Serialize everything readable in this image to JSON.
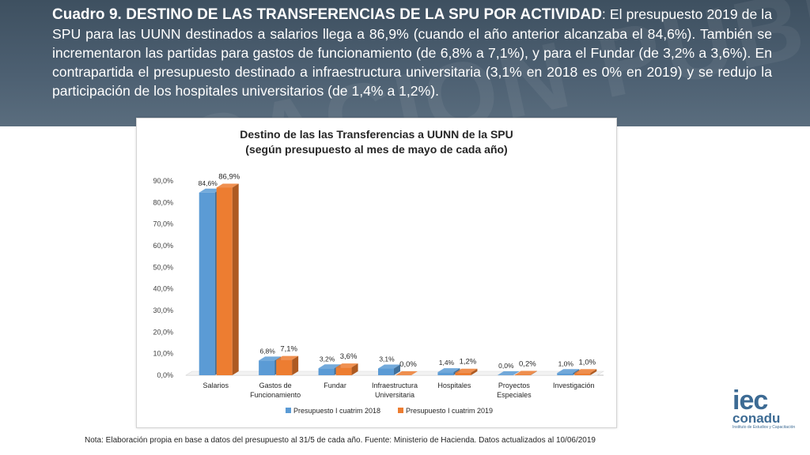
{
  "header": {
    "lead": "Cuadro 9.   DESTINO DE LAS TRANSFERENCIAS DE LA SPU POR ACTIVIDAD",
    "body": ": El presupuesto 2019 de la SPU para las UUNN destinados a salarios llega a 86,9% (cuando el año anterior alcanzaba el 84,6%). También se incrementaron las partidas para gastos de funcionamiento (de 6,8% a 7,1%), y para el Fundar (de 3,2% a 3,6%). En contrapartida el presupuesto destinado a infraestructura universitaria (3,1% en 2018 es 0% en 2019) y se redujo la participación de los hospitales universitarios (de 1,4% a 1,2%)."
  },
  "chart_data": {
    "type": "bar",
    "title": "Destino de las las Transferencias a UUNN de la SPU",
    "subtitle": "(según presupuesto al mes de mayo de cada año)",
    "categories": [
      [
        "Salarios"
      ],
      [
        "Gastos de",
        "Funcionamiento"
      ],
      [
        "Fundar"
      ],
      [
        "Infraestructura",
        "Universitaria"
      ],
      [
        "Hospitales"
      ],
      [
        "Proyectos",
        "Especiales"
      ],
      [
        "Investigación"
      ]
    ],
    "series": [
      {
        "name": "Presupuesto I cuatrim 2018",
        "values": [
          84.6,
          6.8,
          3.2,
          3.1,
          1.4,
          0.0,
          1.0
        ],
        "labels": [
          "84,6%",
          "6,8%",
          "3,2%",
          "3,1%",
          "1,4%",
          "0,0%",
          "1,0%"
        ],
        "color": "#5b9bd5",
        "side": "#41719c"
      },
      {
        "name": "Presupuesto I cuatrim 2019",
        "values": [
          86.9,
          7.1,
          3.6,
          0.0,
          1.2,
          0.2,
          1.0
        ],
        "labels": [
          "86,9%",
          "7,1%",
          "3,6%",
          "0,0%",
          "1,2%",
          "0,2%",
          "1,0%"
        ],
        "color": "#ed7d31",
        "side": "#ae5a21"
      }
    ],
    "yticks": [
      "0,0%",
      "10,0%",
      "20,0%",
      "30,0%",
      "40,0%",
      "50,0%",
      "60,0%",
      "70,0%",
      "80,0%",
      "90,0%"
    ],
    "ylim": [
      0,
      90
    ],
    "legend": "bottom"
  },
  "note": "Nota: Elaboración propia en base a datos del presupuesto al 31/5 de cada año. Fuente: Ministerio de Hacienda. Datos actualizados al 10/06/2019",
  "logo": {
    "main": "iec",
    "sub": "conadu",
    "tag": "Instituto de Estudios y Capacitación"
  }
}
